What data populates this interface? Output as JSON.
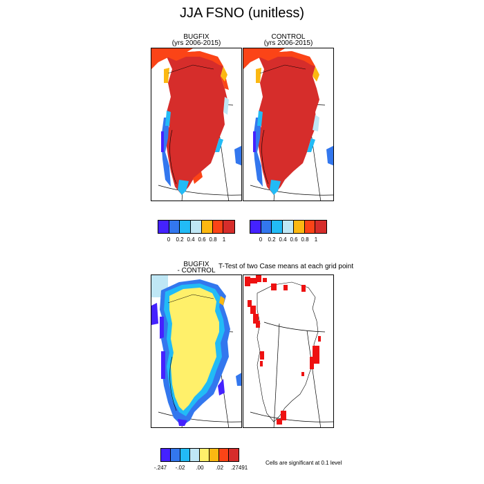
{
  "title": "JJA FSNO (unitless)",
  "panels": {
    "bugfix": {
      "line1": "BUGFIX",
      "line2": "(yrs 2006-2015)"
    },
    "control": {
      "line1": "CONTROL",
      "line2": "(yrs 2006-2015)"
    },
    "diff": {
      "line1": "BUGFIX",
      "line2": "- CONTROL"
    },
    "ttest": {
      "label": "T-Test of two Case means at each grid point"
    }
  },
  "colorbar_top": {
    "colors": [
      "#4422ff",
      "#3377ee",
      "#22bbf6",
      "#bfe7f5",
      "#fbb812",
      "#fb4417",
      "#d62d2b"
    ],
    "ticks": [
      "0",
      "0.2",
      "0.4",
      "0.6",
      "0.8",
      "1"
    ]
  },
  "colorbar_bottom": {
    "colors": [
      "#4422ff",
      "#3377ee",
      "#22bbf6",
      "#bfe7f5",
      "#fff06a",
      "#fbb812",
      "#fb4417",
      "#d62d2b"
    ],
    "ticks": [
      "-.247",
      "-.02",
      ".00",
      ".02",
      ".27491"
    ]
  },
  "significance_note": "Cells are significant at 0.1 level",
  "map_colors": {
    "high": "#d62d2b",
    "orange": "#fb4417",
    "amber": "#fbb812",
    "light_blue": "#bfe7f5",
    "cyan": "#22bbf6",
    "blue": "#3377ee",
    "indigo": "#4422ff",
    "yellow": "#fff06a",
    "significant": "#ee1111"
  }
}
